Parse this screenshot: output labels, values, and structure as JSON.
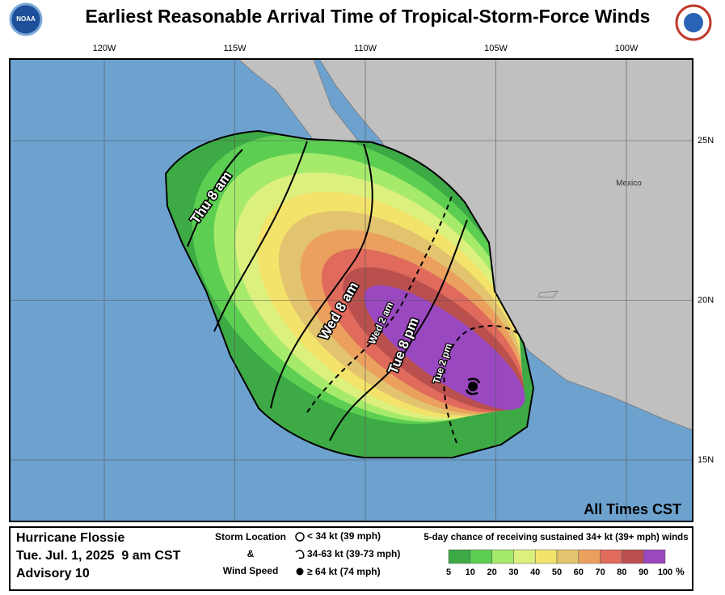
{
  "title": "Earliest Reasonable Arrival Time of Tropical-Storm-Force Winds",
  "map": {
    "lon_labels": [
      "120W",
      "115W",
      "110W",
      "105W",
      "100W"
    ],
    "lat_labels": [
      "25N",
      "20N",
      "15N"
    ],
    "place_label": "Mexico",
    "contour_labels": [
      "Thu 8 am",
      "Wed 8 am",
      "Wed 2 am",
      "Tue 8 pm",
      "Tue 2 pm"
    ],
    "time_note": "All Times CST"
  },
  "info": {
    "storm": "Hurricane Flossie",
    "time": "Tue. Jul. 1, 2025  9 am CST",
    "advisory": "Advisory 10"
  },
  "storm_key": {
    "title_lines": [
      "Storm Location",
      "&",
      "Wind Speed"
    ],
    "items": [
      "< 34 kt (39 mph)",
      "34-63 kt (39-73 mph)",
      "≥ 64 kt (74 mph)"
    ]
  },
  "legend": {
    "title": "5-day chance of receiving sustained 34+ kt (39+ mph) winds",
    "levels": [
      5,
      10,
      20,
      30,
      40,
      50,
      60,
      70,
      80,
      90,
      100
    ],
    "unit": "%",
    "colors": [
      "#3daa45",
      "#5ccf52",
      "#a6ea6c",
      "#dcf07e",
      "#f3e36b",
      "#e3c46e",
      "#eba05e",
      "#e06a5c",
      "#b9504e",
      "#9a48c0"
    ]
  }
}
